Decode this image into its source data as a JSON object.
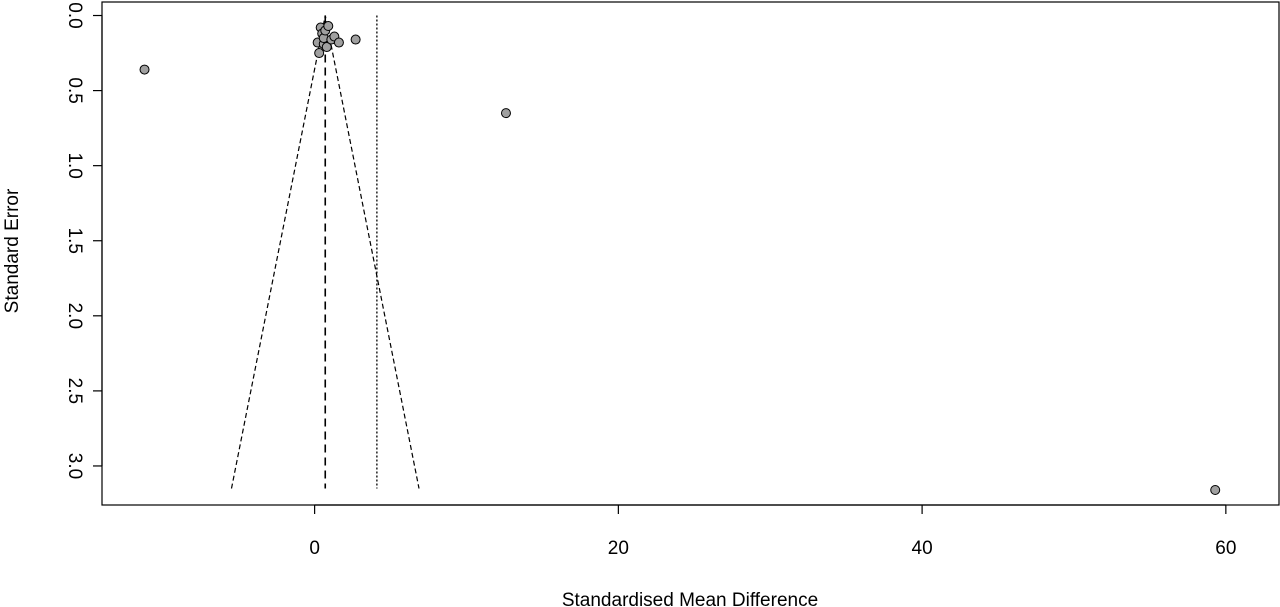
{
  "chart_data": {
    "type": "scatter",
    "title": "",
    "xlabel": "Standardised Mean Difference",
    "ylabel": "Standard Error",
    "xlim": [
      -14,
      63.5
    ],
    "ylim": [
      3.26,
      -0.09
    ],
    "y_axis_reversed": true,
    "x_ticks": [
      0,
      20,
      40,
      60
    ],
    "y_ticks": [
      0.0,
      0.5,
      1.0,
      1.5,
      2.0,
      2.5,
      3.0
    ],
    "x_tick_labels": [
      "0",
      "20",
      "40",
      "60"
    ],
    "y_tick_labels": [
      "0.0",
      "0.5",
      "1.0",
      "1.5",
      "2.0",
      "2.5",
      "3.0"
    ],
    "grid": false,
    "legend": "none",
    "point_color": "#a0a0a0",
    "line_color": "#000000",
    "pooled_estimate": 0.7,
    "pooled_estimate_line_style": "dashed",
    "reference_line": 4.1,
    "reference_line_style": "dotted",
    "funnel_max_se": 3.15,
    "funnel_multiplier": 1.96,
    "points": [
      {
        "x": -11.2,
        "y": 0.36
      },
      {
        "x": 0.2,
        "y": 0.18
      },
      {
        "x": 0.3,
        "y": 0.25
      },
      {
        "x": 0.4,
        "y": 0.08
      },
      {
        "x": 0.5,
        "y": 0.12
      },
      {
        "x": 0.6,
        "y": 0.19
      },
      {
        "x": 0.6,
        "y": 0.15
      },
      {
        "x": 0.7,
        "y": 0.1
      },
      {
        "x": 0.8,
        "y": 0.21
      },
      {
        "x": 0.9,
        "y": 0.07
      },
      {
        "x": 1.1,
        "y": 0.16
      },
      {
        "x": 1.3,
        "y": 0.14
      },
      {
        "x": 1.6,
        "y": 0.18
      },
      {
        "x": 2.7,
        "y": 0.16
      },
      {
        "x": 12.6,
        "y": 0.65
      },
      {
        "x": 59.3,
        "y": 3.16
      }
    ]
  }
}
